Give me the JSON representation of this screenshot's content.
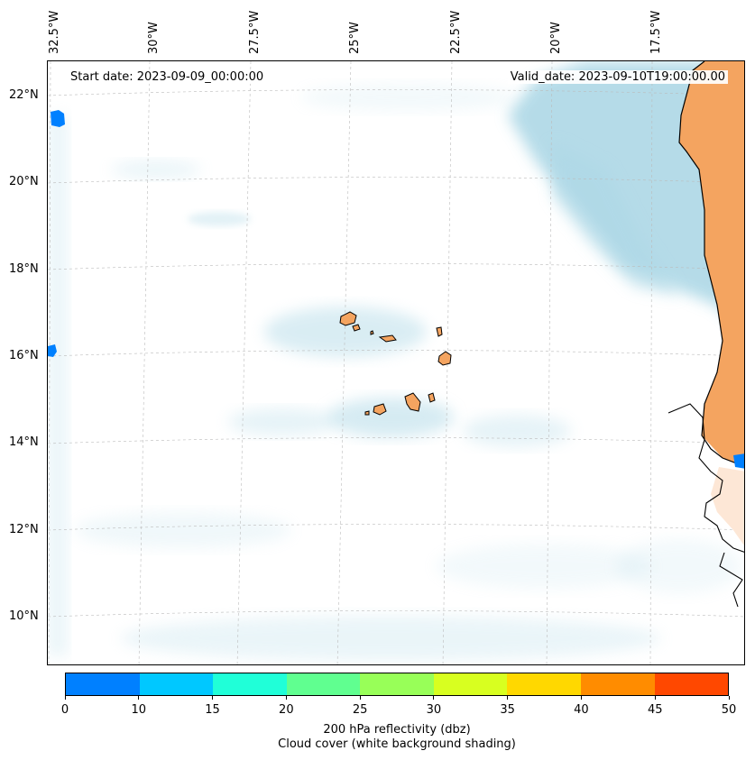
{
  "map": {
    "start_date": "Start date: 2023-09-09_00:00:00",
    "valid_date": "Valid_date: 2023-09-10T19:00:00.00",
    "lon_labels": [
      "32.5°W",
      "30°W",
      "27.5°W",
      "25°W",
      "22.5°W",
      "20°W",
      "17.5°W"
    ],
    "lat_labels": [
      "22°N",
      "20°N",
      "18°N",
      "16°N",
      "14°N",
      "12°N",
      "10°N"
    ],
    "land_color": "#f4a460",
    "cloud_color": "#add8e6"
  },
  "colorbar": {
    "ticks": [
      "0",
      "10",
      "15",
      "20",
      "25",
      "30",
      "35",
      "40",
      "45",
      "50"
    ],
    "colors": [
      "#0080ff",
      "#00c8ff",
      "#20ffd8",
      "#60ff90",
      "#98ff58",
      "#d8ff20",
      "#ffd800",
      "#ff8c00",
      "#ff4800"
    ],
    "label": "200 hPa reflectivity (dbz)",
    "sublabel": "Cloud cover (white background shading)"
  }
}
